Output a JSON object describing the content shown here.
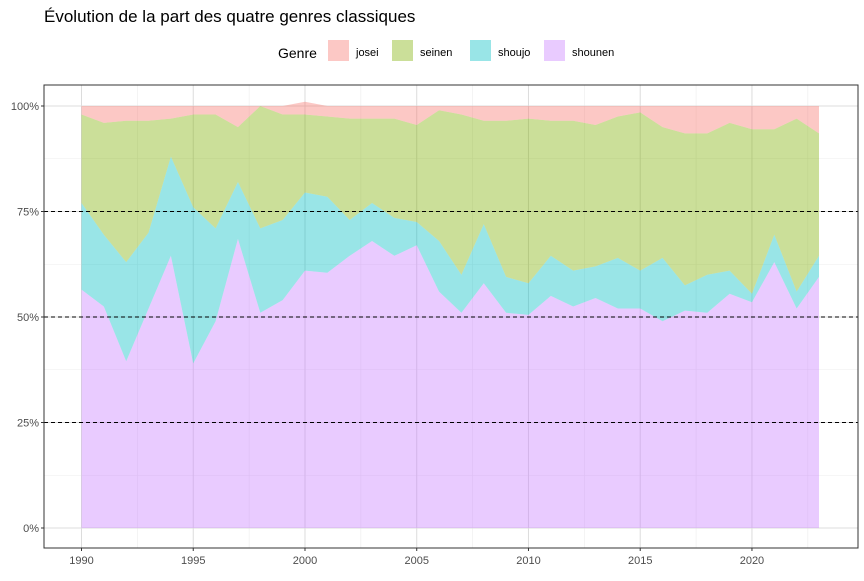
{
  "chart_data": {
    "type": "area",
    "title": "Évolution de la part des quatre genres classiques",
    "xlabel": "",
    "ylabel": "",
    "legend": {
      "title": "Genre",
      "position": "top"
    },
    "x": [
      1990,
      1991,
      1992,
      1993,
      1994,
      1995,
      1996,
      1997,
      1998,
      1999,
      2000,
      2001,
      2002,
      2003,
      2004,
      2005,
      2006,
      2007,
      2008,
      2009,
      2010,
      2011,
      2012,
      2013,
      2014,
      2015,
      2016,
      2017,
      2018,
      2019,
      2020,
      2021,
      2022,
      2023
    ],
    "xlim": [
      1990,
      2023
    ],
    "ylim": [
      0,
      1
    ],
    "x_ticks": [
      1990,
      1995,
      2000,
      2005,
      2010,
      2015,
      2020
    ],
    "x_tick_labels": [
      "1990",
      "1995",
      "2000",
      "2005",
      "2010",
      "2015",
      "2020"
    ],
    "y_ticks": [
      0,
      0.25,
      0.5,
      0.75,
      1.0
    ],
    "y_tick_labels": [
      "0%",
      "25%",
      "50%",
      "75%",
      "100%"
    ],
    "reference_lines": [
      0.25,
      0.5,
      0.75
    ],
    "stacked": true,
    "series": [
      {
        "name": "shounen",
        "color": "#C77CFF",
        "values": [
          0.565,
          0.525,
          0.395,
          0.52,
          0.645,
          0.39,
          0.49,
          0.685,
          0.51,
          0.54,
          0.61,
          0.605,
          0.645,
          0.68,
          0.645,
          0.67,
          0.56,
          0.51,
          0.58,
          0.51,
          0.505,
          0.55,
          0.525,
          0.545,
          0.52,
          0.52,
          0.49,
          0.515,
          0.51,
          0.555,
          0.535,
          0.63,
          0.52,
          0.595
        ]
      },
      {
        "name": "shoujo",
        "color": "#00BFC4",
        "values": [
          0.205,
          0.17,
          0.235,
          0.18,
          0.235,
          0.37,
          0.22,
          0.135,
          0.2,
          0.19,
          0.185,
          0.18,
          0.085,
          0.09,
          0.09,
          0.055,
          0.12,
          0.09,
          0.14,
          0.085,
          0.075,
          0.095,
          0.085,
          0.075,
          0.12,
          0.09,
          0.15,
          0.06,
          0.09,
          0.055,
          0.02,
          0.065,
          0.04,
          0.05
        ]
      },
      {
        "name": "seinen",
        "color": "#7CAE00",
        "values": [
          0.21,
          0.265,
          0.335,
          0.265,
          0.09,
          0.22,
          0.27,
          0.13,
          0.29,
          0.25,
          0.185,
          0.19,
          0.24,
          0.2,
          0.235,
          0.23,
          0.31,
          0.38,
          0.245,
          0.37,
          0.39,
          0.32,
          0.355,
          0.335,
          0.335,
          0.375,
          0.31,
          0.36,
          0.335,
          0.35,
          0.39,
          0.25,
          0.41,
          0.29
        ]
      },
      {
        "name": "josei",
        "color": "#F8766D",
        "values": [
          0.02,
          0.04,
          0.035,
          0.035,
          0.03,
          0.02,
          0.02,
          0.05,
          0.0,
          0.02,
          0.03,
          0.025,
          0.03,
          0.03,
          0.03,
          0.045,
          0.01,
          0.02,
          0.035,
          0.035,
          0.03,
          0.035,
          0.035,
          0.045,
          0.025,
          0.015,
          0.05,
          0.065,
          0.065,
          0.04,
          0.055,
          0.055,
          0.03,
          0.065
        ]
      }
    ],
    "overflow_note": "",
    "legend_order": [
      "josei",
      "seinen",
      "shoujo",
      "shounen"
    ]
  }
}
